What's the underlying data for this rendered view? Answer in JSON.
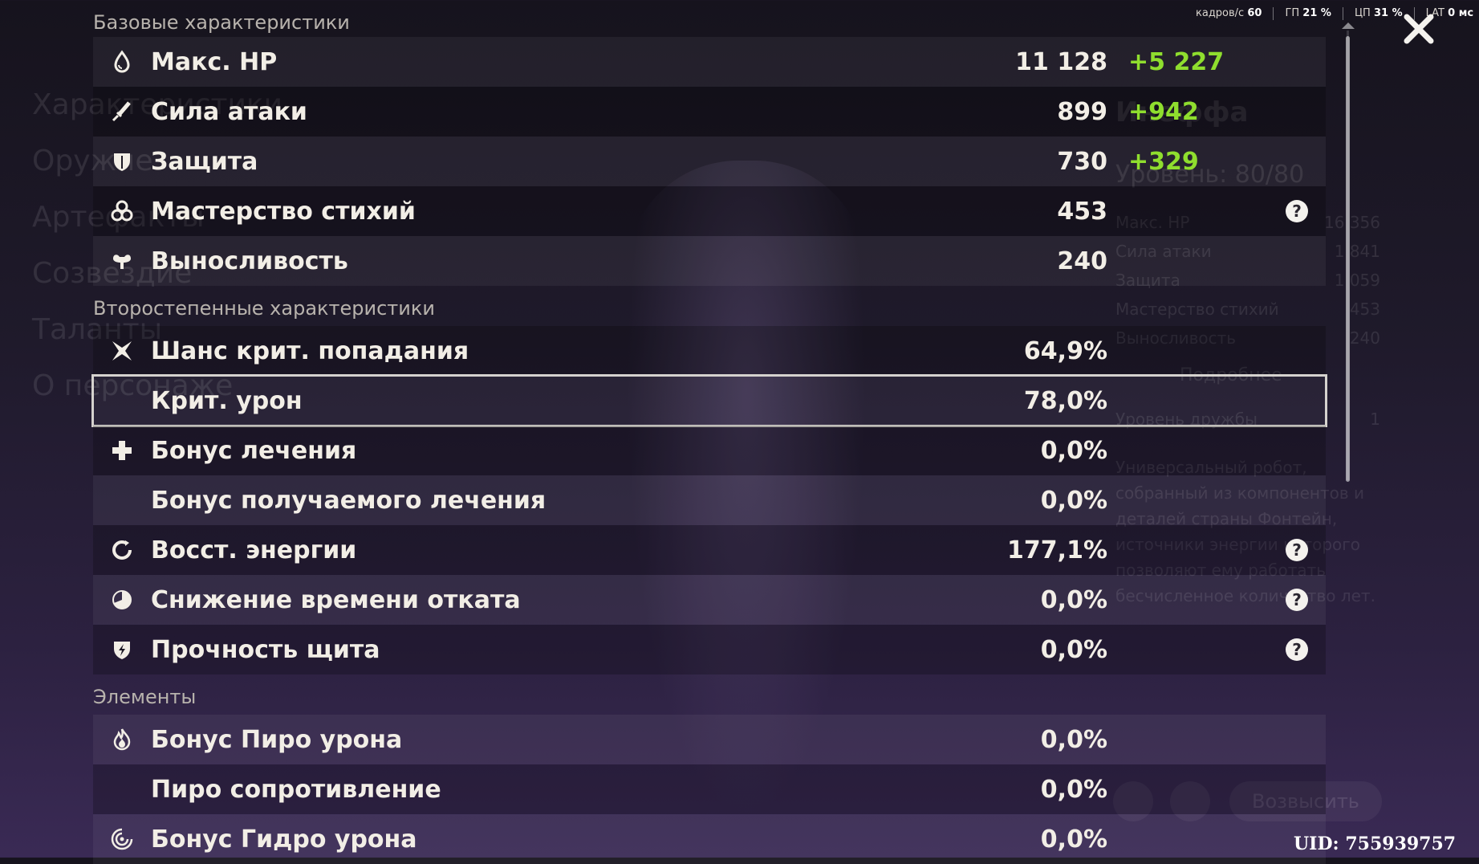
{
  "background": {
    "left_menu": [
      "Характеристики",
      "Оружие",
      "Артефакты",
      "Созвездие",
      "Таланты",
      "О персонаже"
    ],
    "character": {
      "name": "Инеффа",
      "level": "Уровень: 80/80",
      "stats": [
        {
          "label": "Макс. HP",
          "value": "16 356"
        },
        {
          "label": "Сила атаки",
          "value": "1 841"
        },
        {
          "label": "Защита",
          "value": "1 059"
        },
        {
          "label": "Мастерство стихий",
          "value": "453"
        },
        {
          "label": "Выносливость",
          "value": "240"
        }
      ],
      "details_label": "Подробнее",
      "friendship_label": "Уровень дружбы",
      "friendship_value": "1",
      "description": "Универсальный робот, собранный из компонентов и деталей страны Фонтейн, источники энергии которого позволяют ему работать бесчисленное количество лет.",
      "ascend_label": "Возвысить"
    }
  },
  "hud": {
    "fps_label": "кадров/с",
    "fps_value": "60",
    "gpu_label": "ГП",
    "gpu_value": "21 %",
    "cpu_label": "ЦП",
    "cpu_value": "31 %",
    "lat_label": "LAT",
    "lat_value": "0 мс"
  },
  "uid": "UID: 755939757",
  "sections": [
    {
      "title": "Базовые характеристики",
      "rows": [
        {
          "icon": "hp-droplet-icon",
          "label": "Макс. HP",
          "value": "11 128",
          "bonus": "+5 227"
        },
        {
          "icon": "attack-sword-icon",
          "label": "Сила атаки",
          "value": "899",
          "bonus": "+942"
        },
        {
          "icon": "defense-shield-icon",
          "label": "Защита",
          "value": "730",
          "bonus": "+329"
        },
        {
          "icon": "elemental-mastery-icon",
          "label": "Мастерство стихий",
          "value": "453",
          "help": true
        },
        {
          "icon": "stamina-icon",
          "label": "Выносливость",
          "value": "240"
        }
      ]
    },
    {
      "title": "Второстепенные характеристики",
      "rows": [
        {
          "icon": "crit-rate-icon",
          "label": "Шанс крит. попадания",
          "value": "64,9%"
        },
        {
          "icon": "",
          "label": "Крит. урон",
          "value": "78,0%",
          "selected": true
        },
        {
          "icon": "healing-cross-icon",
          "label": "Бонус лечения",
          "value": "0,0%"
        },
        {
          "icon": "",
          "label": "Бонус получаемого лечения",
          "value": "0,0%"
        },
        {
          "icon": "energy-recharge-icon",
          "label": "Восст. энергии",
          "value": "177,1%",
          "help": true
        },
        {
          "icon": "cooldown-icon",
          "label": "Снижение времени отката",
          "value": "0,0%",
          "help": true
        },
        {
          "icon": "shield-strength-icon",
          "label": "Прочность щита",
          "value": "0,0%",
          "help": true
        }
      ]
    },
    {
      "title": "Элементы",
      "rows": [
        {
          "icon": "pyro-icon",
          "label": "Бонус Пиро урона",
          "value": "0,0%"
        },
        {
          "icon": "",
          "label": "Пиро сопротивление",
          "value": "0,0%"
        },
        {
          "icon": "hydro-icon",
          "label": "Бонус Гидро урона",
          "value": "0,0%"
        }
      ]
    }
  ],
  "colors": {
    "bonus": "#8fde2e",
    "text": "#f2eee6",
    "section_title": "#b8b3ad"
  }
}
